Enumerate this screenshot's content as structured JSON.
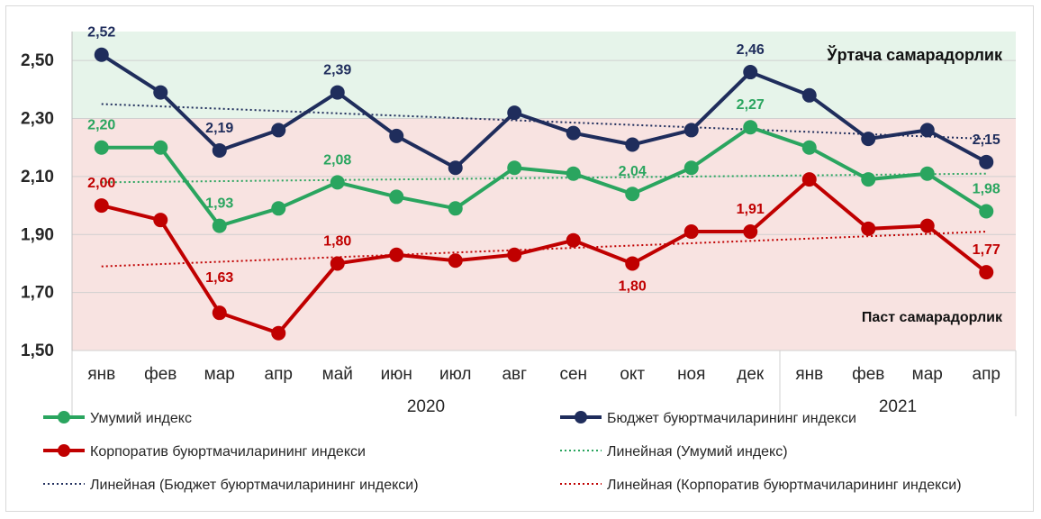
{
  "colors": {
    "overall": "#2aa55f",
    "budget": "#1f2d5c",
    "corporate": "#c00000",
    "zone_mid": "#e6f4ea",
    "zone_low": "#f8e3e1"
  },
  "zones": {
    "mid_label": "Ўртача самарадорлик",
    "low_label": "Паст самарадорлик"
  },
  "chart_data": {
    "type": "line",
    "categories": [
      "янв",
      "фев",
      "мар",
      "апр",
      "май",
      "июн",
      "июл",
      "авг",
      "сен",
      "окт",
      "ноя",
      "дек",
      "янв",
      "фев",
      "мар",
      "апр"
    ],
    "years": [
      {
        "label": "2020",
        "start": 0,
        "end": 11
      },
      {
        "label": "2021",
        "start": 12,
        "end": 15
      }
    ],
    "ylim": [
      1.5,
      2.6
    ],
    "yticks": [
      "1,50",
      "1,70",
      "1,90",
      "2,10",
      "2,30",
      "2,50"
    ],
    "ytick_values": [
      1.5,
      1.7,
      1.9,
      2.1,
      2.3,
      2.5
    ],
    "bands": [
      {
        "key": "mid",
        "from": 2.3,
        "to": 2.6
      },
      {
        "key": "low",
        "from": 1.5,
        "to": 2.3
      }
    ],
    "series": [
      {
        "key": "budget",
        "name": "Бюджет буюртмачиларининг индекси",
        "values": [
          2.52,
          2.39,
          2.19,
          2.26,
          2.39,
          2.24,
          2.13,
          2.32,
          2.25,
          2.21,
          2.26,
          2.46,
          2.38,
          2.23,
          2.26,
          2.15
        ],
        "labels": {
          "0": "2,52",
          "2": "2,19",
          "4": "2,39",
          "11": "2,46",
          "15": "2,15"
        }
      },
      {
        "key": "overall",
        "name": "Умумий индекс",
        "values": [
          2.2,
          2.2,
          1.93,
          1.99,
          2.08,
          2.03,
          1.99,
          2.13,
          2.11,
          2.04,
          2.13,
          2.27,
          2.2,
          2.09,
          2.11,
          1.98
        ],
        "labels": {
          "0": "2,20",
          "2": "1,93",
          "4": "2,08",
          "9": "2,04",
          "11": "2,27",
          "15": "1,98"
        }
      },
      {
        "key": "corporate",
        "name": "Корпоратив буюртмачиларининг индекси",
        "values": [
          2.0,
          1.95,
          1.63,
          1.56,
          1.8,
          1.83,
          1.81,
          1.83,
          1.88,
          1.8,
          1.91,
          1.91,
          2.09,
          1.92,
          1.93,
          1.77
        ],
        "labels": {
          "0": "2,00",
          "2": "1,63",
          "4": "1,80",
          "9": "1,80",
          "11": "1,91",
          "15": "1,77"
        }
      }
    ],
    "trendlines": [
      {
        "key": "overall",
        "name": "Линейная (Умумий индекс)",
        "from": 2.08,
        "to": 2.11
      },
      {
        "key": "budget",
        "name": "Линейная (Бюджет буюртмачиларининг индекси)",
        "from": 2.35,
        "to": 2.23
      },
      {
        "key": "corporate",
        "name": "Линейная (Корпоратив буюртмачиларининг индекси)",
        "from": 1.79,
        "to": 1.91
      }
    ]
  },
  "legend": [
    {
      "key": "overall",
      "style": "marker",
      "label": "Умумий индекс"
    },
    {
      "key": "budget",
      "style": "marker",
      "label": "Бюджет буюртмачиларининг индекси"
    },
    {
      "key": "corporate",
      "style": "marker",
      "label": "Корпоратив буюртмачиларининг индекси"
    },
    {
      "key": "overall",
      "style": "dotted",
      "label": "Линейная (Умумий индекс)"
    },
    {
      "key": "budget",
      "style": "dotted",
      "label": "Линейная (Бюджет буюртмачиларининг индекси)"
    },
    {
      "key": "corporate",
      "style": "dotted",
      "label": "Линейная (Корпоратив буюртмачиларининг индекси)"
    }
  ]
}
